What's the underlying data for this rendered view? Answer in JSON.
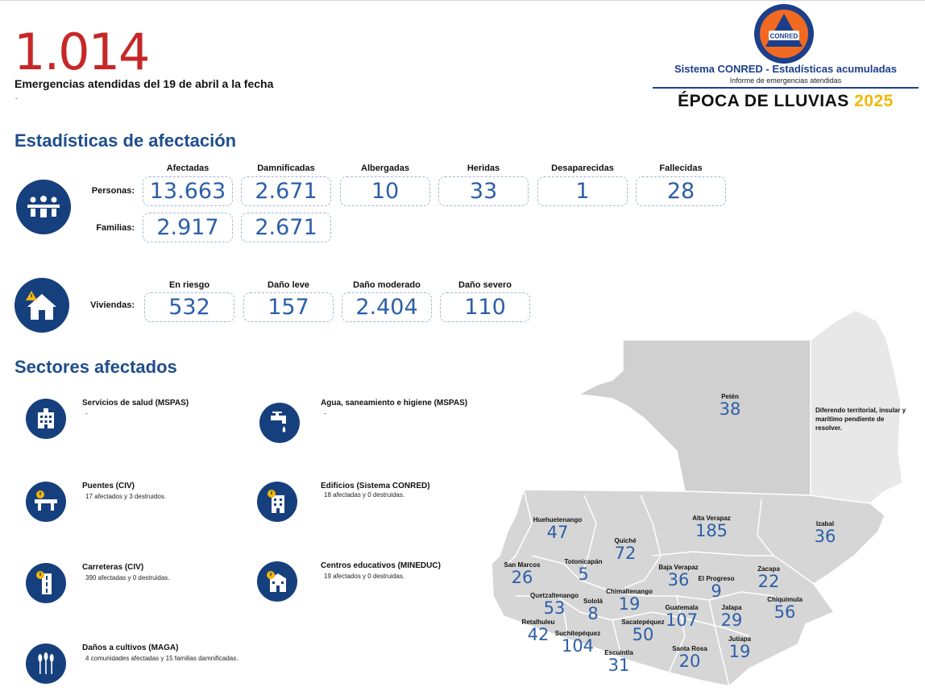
{
  "header": {
    "total": "1.014",
    "subtitle": "Emergencias atendidas del 19 de abril a la fecha",
    "note": "-"
  },
  "brand": {
    "logo_text": "CONRED",
    "line1": "Sistema CONRED - Estadísticas acumuladas",
    "line2": "Informe de emergencias atendidas",
    "line3": "ÉPOCA DE LLUVIAS",
    "year": "2025",
    "colors": {
      "blue": "#1c3f8a",
      "orange": "#f26a21",
      "yellow": "#f2b705"
    }
  },
  "stats": {
    "title": "Estadísticas de afectación",
    "people_headers": [
      "Afectadas",
      "Damnificadas",
      "Albergadas",
      "Heridas",
      "Desaparecidas",
      "Fallecidas"
    ],
    "personas": {
      "label": "Personas:",
      "values": [
        "13.663",
        "2.671",
        "10",
        "33",
        "1",
        "28"
      ]
    },
    "familias": {
      "label": "Familias:",
      "values": [
        "2.917",
        "2.671"
      ]
    },
    "housing_headers": [
      "En riesgo",
      "Daño leve",
      "Daño moderado",
      "Daño severo"
    ],
    "viviendas": {
      "label": "Viviendas:",
      "values": [
        "532",
        "157",
        "2.404",
        "110"
      ]
    }
  },
  "sectors": {
    "title": "Sectores afectados",
    "items": [
      {
        "title": "Servicios de salud (MSPAS)",
        "detail": "-",
        "icon": "hospital-icon"
      },
      {
        "title": "Agua, saneamiento e higiene (MSPAS)",
        "detail": "-",
        "icon": "water-tap-icon"
      },
      {
        "title": "Puentes (CIV)",
        "detail": "17 afectados y 3 destruidos.",
        "icon": "bridge-icon"
      },
      {
        "title": "Edificios (Sistema CONRED)",
        "detail": "18 afectadas y 0 destruidas.",
        "icon": "building-icon"
      },
      {
        "title": "Carreteras (CIV)",
        "detail": "390 afectadas y 0 destruidas.",
        "icon": "road-icon"
      },
      {
        "title": "Centros educativos (MINEDUC)",
        "detail": "19 afectados y 0 destruidas.",
        "icon": "school-icon"
      },
      {
        "title": "Daños a cultivos (MAGA)",
        "detail": "4 comunidades afectadas y 15 familias damnificadas.",
        "icon": "crops-icon"
      }
    ]
  },
  "map": {
    "diferendo": "Diferendo territorial, insular y marítimo pendiente de resolver.",
    "departments": [
      {
        "name": "Petén",
        "value": "38"
      },
      {
        "name": "Huehuetenango",
        "value": "47"
      },
      {
        "name": "Alta Verapaz",
        "value": "185"
      },
      {
        "name": "Izabal",
        "value": "36"
      },
      {
        "name": "Quiché",
        "value": "72"
      },
      {
        "name": "San Marcos",
        "value": "26"
      },
      {
        "name": "Totonicapán",
        "value": "5"
      },
      {
        "name": "Baja Verapaz",
        "value": "36"
      },
      {
        "name": "El Progreso",
        "value": "9"
      },
      {
        "name": "Zacapa",
        "value": "22"
      },
      {
        "name": "Quetzaltenango",
        "value": "53"
      },
      {
        "name": "Sololá",
        "value": "8"
      },
      {
        "name": "Chimaltenango",
        "value": "19"
      },
      {
        "name": "Guatemala",
        "value": "107"
      },
      {
        "name": "Jalapa",
        "value": "29"
      },
      {
        "name": "Chiquimula",
        "value": "56"
      },
      {
        "name": "Retalhuleu",
        "value": "42"
      },
      {
        "name": "Suchitepéquez",
        "value": "104"
      },
      {
        "name": "Sacatepéquez",
        "value": "50"
      },
      {
        "name": "Escuintla",
        "value": "31"
      },
      {
        "name": "Santa Rosa",
        "value": "20"
      },
      {
        "name": "Jutiapa",
        "value": "19"
      }
    ]
  }
}
